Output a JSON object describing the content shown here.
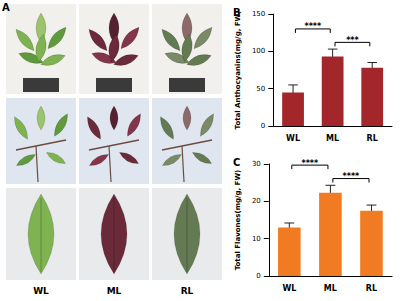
{
  "photo_panel": {
    "panel": "A",
    "labels": [
      "WL",
      "ML",
      "RL"
    ]
  },
  "chart_data": [
    {
      "type": "bar",
      "panel": "B",
      "y_label": "Total Anthocyanins(mg/g, FW)",
      "categories": [
        "WL",
        "ML",
        "RL"
      ],
      "values": [
        45,
        93,
        78
      ],
      "errors": [
        10,
        10,
        7
      ],
      "color": "#a3262a",
      "ylim": [
        0,
        150
      ],
      "yticks": [
        0,
        50,
        100,
        150
      ],
      "annotations": [
        {
          "from": "WL",
          "to": "ML",
          "label": "****"
        },
        {
          "from": "ML",
          "to": "RL",
          "label": "***"
        }
      ]
    },
    {
      "type": "bar",
      "panel": "C",
      "y_label": "Total Flavones(mg/g, FW)",
      "categories": [
        "WL",
        "ML",
        "RL"
      ],
      "values": [
        13,
        22.3,
        17.5
      ],
      "errors": [
        1.2,
        2,
        1.5
      ],
      "color": "#f07b22",
      "ylim": [
        0,
        30
      ],
      "yticks": [
        0,
        10,
        20,
        30
      ],
      "annotations": [
        {
          "from": "WL",
          "to": "ML",
          "label": "****"
        },
        {
          "from": "ML",
          "to": "RL",
          "label": "****"
        }
      ]
    }
  ]
}
